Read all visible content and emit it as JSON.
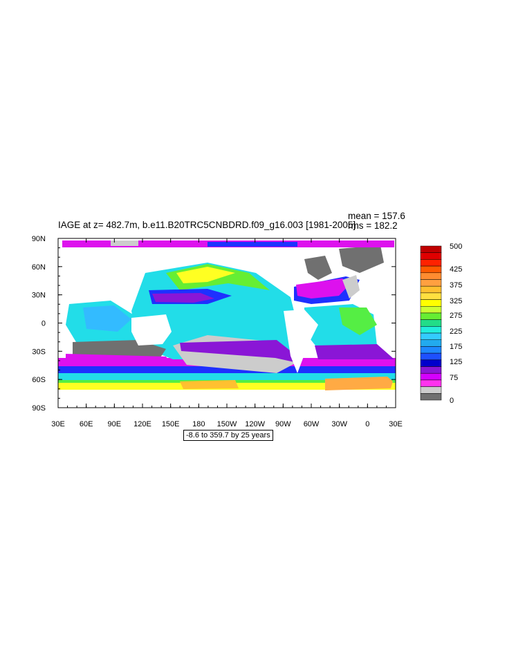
{
  "title": "IAGE at z= 482.7m, b.e11.B20TRC5CNBDRD.f09_g16.003 [1981-2005]",
  "stats": {
    "mean": "mean = 157.6",
    "rms": "rms = 182.2"
  },
  "range_note": "-8.6 to 359.7 by 25 years",
  "x_ticks": [
    "30E",
    "60E",
    "90E",
    "120E",
    "150E",
    "180",
    "150W",
    "120W",
    "90W",
    "60W",
    "30W",
    "0",
    "30E"
  ],
  "y_ticks": [
    "90N",
    "60N",
    "30N",
    "0",
    "30S",
    "60S",
    "90S"
  ],
  "colorbar": {
    "labels": [
      "500",
      "425",
      "375",
      "325",
      "275",
      "225",
      "175",
      "125",
      "75",
      "0"
    ],
    "colors": [
      "#c00000",
      "#e00000",
      "#ff2200",
      "#ff5a00",
      "#ff8c30",
      "#ffa040",
      "#ffc030",
      "#ffe040",
      "#ffff00",
      "#ccff33",
      "#66ee33",
      "#22dd88",
      "#22eedd",
      "#33ccff",
      "#22aaee",
      "#1e88ff",
      "#1e50ff",
      "#0000cc",
      "#8a16d6",
      "#d500ff",
      "#ff33ee",
      "#cccccc",
      "#707070"
    ]
  },
  "legend_title": "",
  "map_colors": {
    "land": "#ffffff",
    "darkgray": "#707070",
    "lightgray": "#cccccc",
    "magenta": "#dd11ee",
    "purple": "#8a16d6",
    "blue": "#1e30ff",
    "cyan": "#22dde8",
    "skyblue": "#33bbff",
    "green": "#55ee44",
    "yellow": "#ffff22",
    "orange": "#ffaa44"
  }
}
